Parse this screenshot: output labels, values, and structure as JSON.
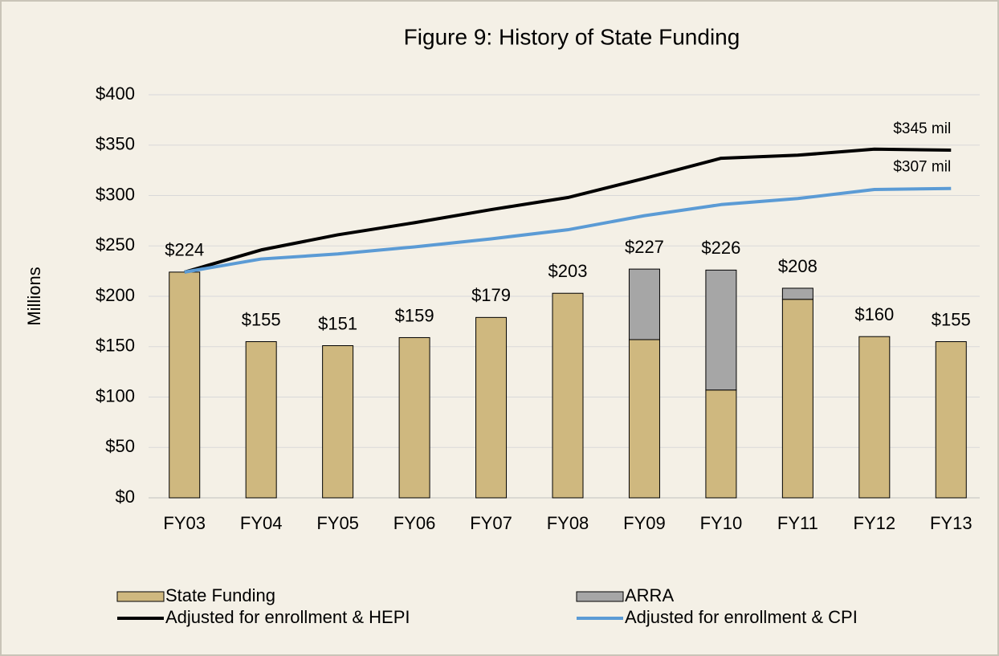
{
  "chart_data": {
    "type": "bar",
    "stacked": true,
    "title": "Figure 9:  History of State Funding",
    "y_label": "Millions",
    "categories": [
      "FY03",
      "FY04",
      "FY05",
      "FY06",
      "FY07",
      "FY08",
      "FY09",
      "FY10",
      "FY11",
      "FY12",
      "FY13"
    ],
    "series": [
      {
        "name": "State Funding",
        "type": "bar",
        "color": "#cfb87f",
        "values": [
          224,
          155,
          151,
          159,
          179,
          203,
          157,
          107,
          197,
          160,
          155
        ]
      },
      {
        "name": "ARRA",
        "type": "bar",
        "color": "#a6a6a6",
        "values": [
          null,
          null,
          null,
          null,
          null,
          null,
          70,
          119,
          11,
          null,
          null
        ]
      },
      {
        "name": "Adjusted for enrollment & HEPI",
        "type": "line",
        "color": "#000000",
        "values": [
          224,
          246,
          261,
          273,
          286,
          298,
          317,
          337,
          340,
          346,
          345
        ],
        "end_label": "$345 mil"
      },
      {
        "name": "Adjusted for enrollment & CPI",
        "type": "line",
        "color": "#5b9bd5",
        "values": [
          224,
          237,
          242,
          249,
          257,
          266,
          280,
          291,
          297,
          306,
          307
        ],
        "end_label": "$307 mil"
      }
    ],
    "totals": [
      224,
      155,
      151,
      159,
      179,
      203,
      227,
      226,
      208,
      160,
      155
    ],
    "total_labels": [
      "$224",
      "$155",
      "$151",
      "$159",
      "$179",
      "$203",
      "$227",
      "$226",
      "$208",
      "$160",
      "$155"
    ],
    "ylim": [
      0,
      400
    ],
    "yticks": [
      {
        "value": 0,
        "label": "$0"
      },
      {
        "value": 50,
        "label": "$50"
      },
      {
        "value": 100,
        "label": "$100"
      },
      {
        "value": 150,
        "label": "$150"
      },
      {
        "value": 200,
        "label": "$200"
      },
      {
        "value": 250,
        "label": "$250"
      },
      {
        "value": 300,
        "label": "$300"
      },
      {
        "value": 350,
        "label": "$350"
      },
      {
        "value": 400,
        "label": "$400"
      }
    ],
    "grid": true,
    "legend": "bottom"
  }
}
